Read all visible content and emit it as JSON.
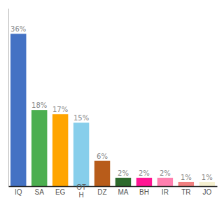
{
  "chart_data": {
    "type": "bar",
    "categories": [
      "IQ",
      "SA",
      "EG",
      "OT\nH",
      "DZ",
      "MA",
      "BH",
      "IR",
      "TR",
      "JO"
    ],
    "values": [
      36,
      18,
      17,
      15,
      6,
      2,
      2,
      2,
      1,
      1
    ],
    "value_labels": [
      "36%",
      "18%",
      "17%",
      "15%",
      "6%",
      "2%",
      "2%",
      "2%",
      "1%",
      "1%"
    ],
    "colors": [
      "#4472c4",
      "#4caf50",
      "#ffa500",
      "#87ceeb",
      "#b85c1a",
      "#2d6a2d",
      "#ff1493",
      "#ff80b0",
      "#f08080",
      "#f5f0d0"
    ],
    "ylim": [
      0,
      42
    ],
    "data_labels": true,
    "tick_labels": "x"
  }
}
